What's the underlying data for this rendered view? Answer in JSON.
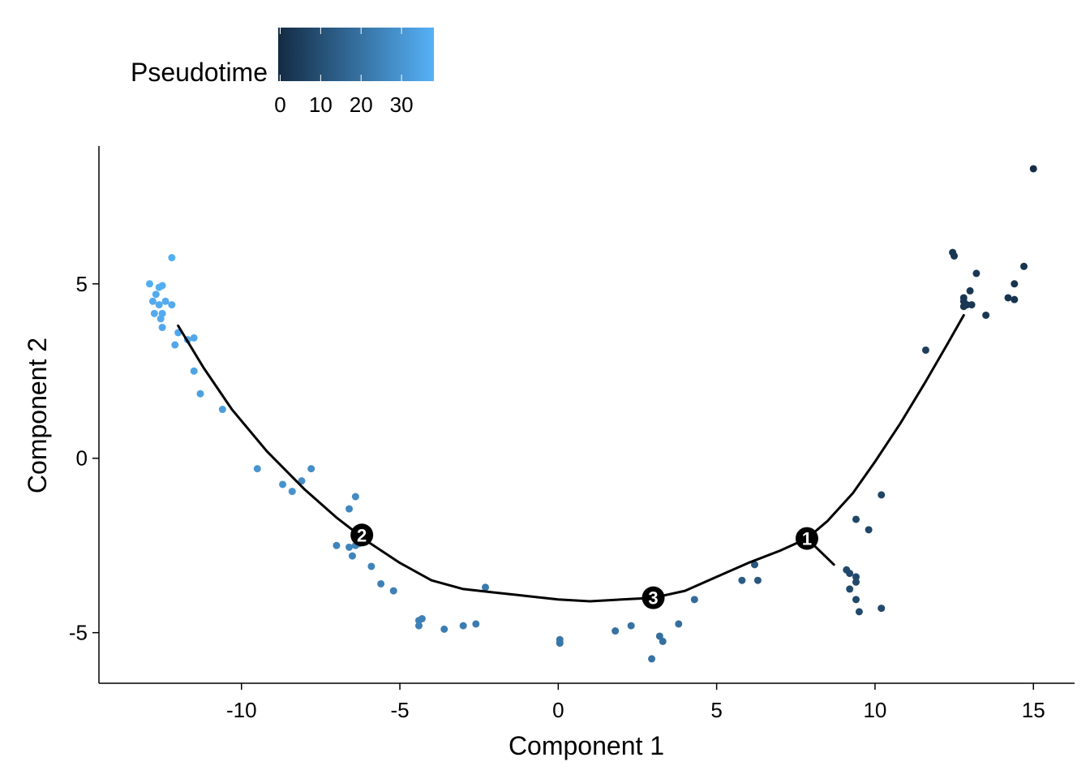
{
  "chart_data": {
    "type": "scatter",
    "xlabel": "Component 1",
    "ylabel": "Component 2",
    "xlim": [
      -14.5,
      16.3
    ],
    "ylim": [
      -6.45,
      8.95
    ],
    "x_ticks": [
      {
        "value": -10,
        "label": "-10"
      },
      {
        "value": -5,
        "label": "-5"
      },
      {
        "value": 0,
        "label": "0"
      },
      {
        "value": 5,
        "label": "5"
      },
      {
        "value": 10,
        "label": "10"
      },
      {
        "value": 15,
        "label": "15"
      }
    ],
    "y_ticks": [
      {
        "value": -5,
        "label": "-5"
      },
      {
        "value": 0,
        "label": "0"
      },
      {
        "value": 5,
        "label": "5"
      }
    ],
    "grid": false,
    "legend": {
      "title": "Pseudotime",
      "placement": "top-left",
      "colorbar_min": -0.5,
      "colorbar_max": 38,
      "ticks": [
        {
          "value": 0,
          "label": "0"
        },
        {
          "value": 10,
          "label": "10"
        },
        {
          "value": 20,
          "label": "20"
        },
        {
          "value": 30,
          "label": "30"
        }
      ],
      "color_low": "#132B43",
      "color_high": "#56B1F7"
    },
    "trajectory": [
      [
        -12.0,
        3.8
      ],
      [
        -11.2,
        2.6
      ],
      [
        -10.3,
        1.4
      ],
      [
        -9.2,
        0.2
      ],
      [
        -8.0,
        -0.9
      ],
      [
        -7.0,
        -1.7
      ],
      [
        -6.0,
        -2.4
      ],
      [
        -5.0,
        -3.0
      ],
      [
        -4.0,
        -3.5
      ],
      [
        -3.0,
        -3.75
      ],
      [
        -2.0,
        -3.85
      ],
      [
        -1.0,
        -3.95
      ],
      [
        0.0,
        -4.05
      ],
      [
        1.0,
        -4.1
      ],
      [
        2.0,
        -4.05
      ],
      [
        3.0,
        -4.0
      ],
      [
        4.0,
        -3.8
      ],
      [
        5.0,
        -3.4
      ],
      [
        6.0,
        -3.0
      ],
      [
        7.0,
        -2.65
      ],
      [
        7.85,
        -2.3
      ],
      [
        8.5,
        -1.8
      ],
      [
        9.3,
        -1.0
      ],
      [
        10.0,
        -0.1
      ],
      [
        10.8,
        1.0
      ],
      [
        11.6,
        2.2
      ],
      [
        12.3,
        3.3
      ],
      [
        12.8,
        4.1
      ]
    ],
    "trajectory_branch": [
      [
        7.85,
        -2.3
      ],
      [
        8.7,
        -3.05
      ]
    ],
    "branch_points": [
      {
        "label": "1",
        "x": 7.85,
        "y": -2.3
      },
      {
        "label": "2",
        "x": -6.2,
        "y": -2.2
      },
      {
        "label": "3",
        "x": 3.0,
        "y": -4.0
      }
    ],
    "points": [
      {
        "x": -12.9,
        "y": 5.0,
        "t": 37
      },
      {
        "x": -12.6,
        "y": 4.9,
        "t": 37
      },
      {
        "x": -12.5,
        "y": 4.95,
        "t": 37
      },
      {
        "x": -12.7,
        "y": 4.7,
        "t": 36
      },
      {
        "x": -12.8,
        "y": 4.5,
        "t": 36
      },
      {
        "x": -12.4,
        "y": 4.5,
        "t": 36
      },
      {
        "x": -12.6,
        "y": 4.4,
        "t": 36
      },
      {
        "x": -12.2,
        "y": 4.4,
        "t": 36
      },
      {
        "x": -12.5,
        "y": 4.15,
        "t": 36
      },
      {
        "x": -12.75,
        "y": 4.15,
        "t": 36
      },
      {
        "x": -12.55,
        "y": 4.0,
        "t": 36
      },
      {
        "x": -12.2,
        "y": 5.75,
        "t": 37
      },
      {
        "x": -12.5,
        "y": 3.75,
        "t": 35
      },
      {
        "x": -12.0,
        "y": 3.6,
        "t": 35
      },
      {
        "x": -11.7,
        "y": 3.4,
        "t": 35
      },
      {
        "x": -11.5,
        "y": 3.45,
        "t": 35
      },
      {
        "x": -12.1,
        "y": 3.25,
        "t": 35
      },
      {
        "x": -11.5,
        "y": 2.5,
        "t": 34
      },
      {
        "x": -11.3,
        "y": 1.85,
        "t": 33
      },
      {
        "x": -10.6,
        "y": 1.4,
        "t": 32
      },
      {
        "x": -9.5,
        "y": -0.3,
        "t": 30
      },
      {
        "x": -8.7,
        "y": -0.75,
        "t": 29
      },
      {
        "x": -8.4,
        "y": -0.95,
        "t": 29
      },
      {
        "x": -8.1,
        "y": -0.65,
        "t": 28
      },
      {
        "x": -7.8,
        "y": -0.3,
        "t": 28
      },
      {
        "x": -6.4,
        "y": -1.1,
        "t": 27
      },
      {
        "x": -6.6,
        "y": -1.45,
        "t": 26
      },
      {
        "x": -7.0,
        "y": -2.5,
        "t": 25
      },
      {
        "x": -6.6,
        "y": -2.55,
        "t": 25
      },
      {
        "x": -6.4,
        "y": -2.5,
        "t": 25
      },
      {
        "x": -6.3,
        "y": -2.45,
        "t": 25
      },
      {
        "x": -6.5,
        "y": -2.8,
        "t": 25
      },
      {
        "x": -5.9,
        "y": -3.1,
        "t": 25
      },
      {
        "x": -5.6,
        "y": -3.6,
        "t": 24
      },
      {
        "x": -5.2,
        "y": -3.8,
        "t": 24
      },
      {
        "x": -4.3,
        "y": -4.6,
        "t": 24
      },
      {
        "x": -4.4,
        "y": -4.65,
        "t": 24
      },
      {
        "x": -4.4,
        "y": -4.8,
        "t": 24
      },
      {
        "x": -3.6,
        "y": -4.9,
        "t": 23
      },
      {
        "x": -3.0,
        "y": -4.8,
        "t": 23
      },
      {
        "x": -2.6,
        "y": -4.75,
        "t": 23
      },
      {
        "x": -2.3,
        "y": -3.7,
        "t": 22
      },
      {
        "x": 0.05,
        "y": -5.2,
        "t": 21
      },
      {
        "x": 0.05,
        "y": -5.3,
        "t": 21
      },
      {
        "x": 1.8,
        "y": -4.95,
        "t": 20
      },
      {
        "x": 2.3,
        "y": -4.8,
        "t": 20
      },
      {
        "x": 2.95,
        "y": -5.75,
        "t": 20
      },
      {
        "x": 3.2,
        "y": -5.1,
        "t": 19
      },
      {
        "x": 3.3,
        "y": -5.25,
        "t": 19
      },
      {
        "x": 3.8,
        "y": -4.75,
        "t": 19
      },
      {
        "x": 4.3,
        "y": -4.05,
        "t": 18
      },
      {
        "x": 5.8,
        "y": -3.5,
        "t": 14
      },
      {
        "x": 6.2,
        "y": -3.05,
        "t": 12
      },
      {
        "x": 6.3,
        "y": -3.5,
        "t": 12
      },
      {
        "x": 9.1,
        "y": -3.2,
        "t": 8
      },
      {
        "x": 9.2,
        "y": -3.3,
        "t": 8
      },
      {
        "x": 9.4,
        "y": -3.4,
        "t": 8
      },
      {
        "x": 9.2,
        "y": -3.75,
        "t": 8
      },
      {
        "x": 9.4,
        "y": -3.55,
        "t": 8
      },
      {
        "x": 9.4,
        "y": -4.05,
        "t": 8
      },
      {
        "x": 9.5,
        "y": -4.4,
        "t": 8
      },
      {
        "x": 10.2,
        "y": -4.3,
        "t": 8
      },
      {
        "x": 9.4,
        "y": -1.75,
        "t": 7
      },
      {
        "x": 9.8,
        "y": -2.05,
        "t": 7
      },
      {
        "x": 10.2,
        "y": -1.05,
        "t": 7
      },
      {
        "x": 11.6,
        "y": 3.1,
        "t": 5
      },
      {
        "x": 12.45,
        "y": 5.9,
        "t": 3
      },
      {
        "x": 12.5,
        "y": 5.8,
        "t": 3
      },
      {
        "x": 12.8,
        "y": 4.6,
        "t": 3
      },
      {
        "x": 12.8,
        "y": 4.5,
        "t": 3
      },
      {
        "x": 13.0,
        "y": 4.8,
        "t": 3
      },
      {
        "x": 12.8,
        "y": 4.35,
        "t": 3
      },
      {
        "x": 12.9,
        "y": 4.4,
        "t": 3
      },
      {
        "x": 13.05,
        "y": 4.4,
        "t": 3
      },
      {
        "x": 13.2,
        "y": 5.3,
        "t": 3
      },
      {
        "x": 13.5,
        "y": 4.1,
        "t": 3
      },
      {
        "x": 14.2,
        "y": 4.6,
        "t": 2
      },
      {
        "x": 14.4,
        "y": 5.0,
        "t": 2
      },
      {
        "x": 14.4,
        "y": 4.55,
        "t": 2
      },
      {
        "x": 14.7,
        "y": 5.5,
        "t": 2
      },
      {
        "x": 15.0,
        "y": 8.3,
        "t": 0
      }
    ]
  }
}
